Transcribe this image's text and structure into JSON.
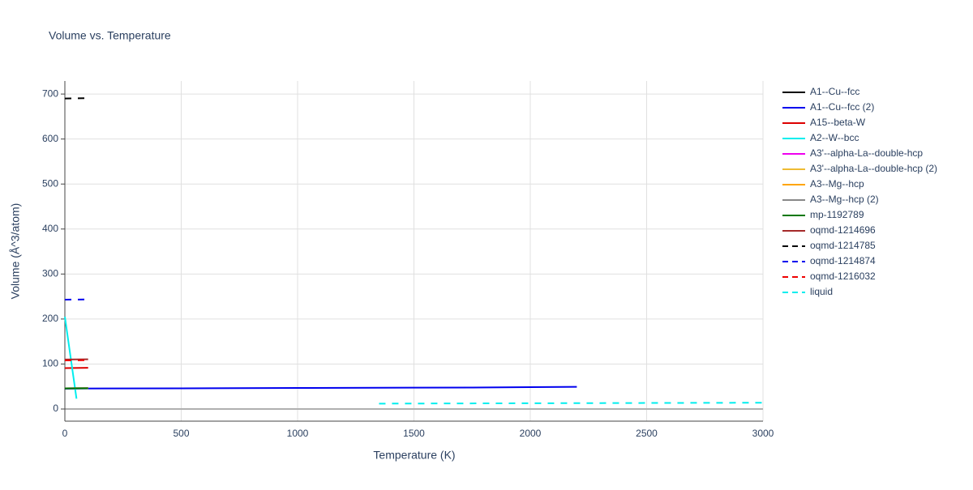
{
  "chart_data": {
    "type": "line",
    "title": "Volume vs. Temperature",
    "x_label": "Temperature (K)",
    "y_label": "Volume (Å^3/atom)",
    "xlim": [
      0,
      3000
    ],
    "ylim": [
      -27,
      729
    ],
    "xticks": [
      0,
      500,
      1000,
      1500,
      2000,
      2500,
      3000
    ],
    "yticks": [
      0,
      100,
      200,
      300,
      400,
      500,
      600,
      700
    ],
    "grid": true,
    "legend": "right",
    "series": [
      {
        "name": "A1--Cu--fcc",
        "color": "#000000",
        "dash": false,
        "x": [
          0,
          100
        ],
        "values": [
          45.5,
          45.8
        ]
      },
      {
        "name": "A1--Cu--fcc (2)",
        "color": "#0000ee",
        "dash": false,
        "x": [
          0,
          500,
          1000,
          1500,
          1750,
          2000,
          2200
        ],
        "values": [
          45.5,
          46,
          46.8,
          47.5,
          47.8,
          48.5,
          49.2
        ]
      },
      {
        "name": "A15--beta-W",
        "color": "#dd0000",
        "dash": false,
        "x": [
          0,
          100
        ],
        "values": [
          91,
          91.5
        ]
      },
      {
        "name": "A2--W--bcc",
        "color": "#00eeee",
        "dash": false,
        "x": [
          0,
          50
        ],
        "values": [
          205,
          23
        ]
      },
      {
        "name": "A3'--alpha-La--double-hcp",
        "color": "#ee00ee",
        "dash": false,
        "x": [
          0,
          100
        ],
        "values": [
          46,
          46.3
        ]
      },
      {
        "name": "A3'--alpha-La--double-hcp (2)",
        "color": "#eebb33",
        "dash": false,
        "x": [
          0,
          100
        ],
        "values": [
          46,
          46.4
        ]
      },
      {
        "name": "A3--Mg--hcp",
        "color": "#ffa500",
        "dash": false,
        "x": [
          0,
          100
        ],
        "values": [
          46,
          46.2
        ]
      },
      {
        "name": "A3--Mg--hcp (2)",
        "color": "#888888",
        "dash": false,
        "x": [
          0,
          100
        ],
        "values": [
          46,
          46.3
        ]
      },
      {
        "name": "mp-1192789",
        "color": "#007700",
        "dash": false,
        "x": [
          0,
          100
        ],
        "values": [
          46,
          46.2
        ]
      },
      {
        "name": "oqmd-1214696",
        "color": "#a52a2a",
        "dash": false,
        "x": [
          0,
          100
        ],
        "values": [
          110,
          110.5
        ]
      },
      {
        "name": "oqmd-1214785",
        "color": "#000000",
        "dash": true,
        "x": [
          0,
          100
        ],
        "values": [
          690,
          691
        ]
      },
      {
        "name": "oqmd-1214874",
        "color": "#0000ee",
        "dash": true,
        "x": [
          0,
          100
        ],
        "values": [
          243,
          243.5
        ]
      },
      {
        "name": "oqmd-1216032",
        "color": "#ee0000",
        "dash": true,
        "x": [
          0,
          100
        ],
        "values": [
          108,
          108.5
        ]
      },
      {
        "name": "liquid",
        "color": "#00eeee",
        "dash": true,
        "x": [
          1350,
          2000,
          2500,
          3000
        ],
        "values": [
          12,
          12.8,
          13.4,
          14
        ]
      }
    ]
  }
}
